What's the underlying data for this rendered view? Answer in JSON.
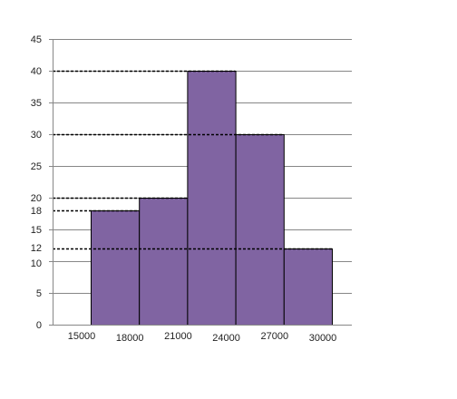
{
  "chart_data": {
    "type": "bar",
    "style": "histogram",
    "bins": [
      {
        "start": 15000,
        "end": 18000,
        "value": 18
      },
      {
        "start": 18000,
        "end": 21000,
        "value": 20
      },
      {
        "start": 21000,
        "end": 24000,
        "value": 40
      },
      {
        "start": 24000,
        "end": 27000,
        "value": 30
      },
      {
        "start": 27000,
        "end": 30000,
        "value": 12
      }
    ],
    "x_tick_labels": [
      "15000",
      "18000",
      "21000",
      "24000",
      "27000",
      "30000"
    ],
    "y_ticks": [
      0,
      5,
      10,
      15,
      20,
      25,
      30,
      35,
      40,
      45
    ],
    "y_extra_ticks": [
      12,
      18
    ],
    "reference_lines": [
      40,
      30,
      20,
      18,
      12
    ],
    "ylim": [
      0,
      45
    ],
    "grid": true,
    "title": "",
    "xlabel": "",
    "ylabel": "",
    "colors": {
      "bar_fill": "#8064A2",
      "bar_stroke": "#000000",
      "grid": "#878787",
      "axis": "#878787",
      "reference_line": "#000000"
    }
  }
}
